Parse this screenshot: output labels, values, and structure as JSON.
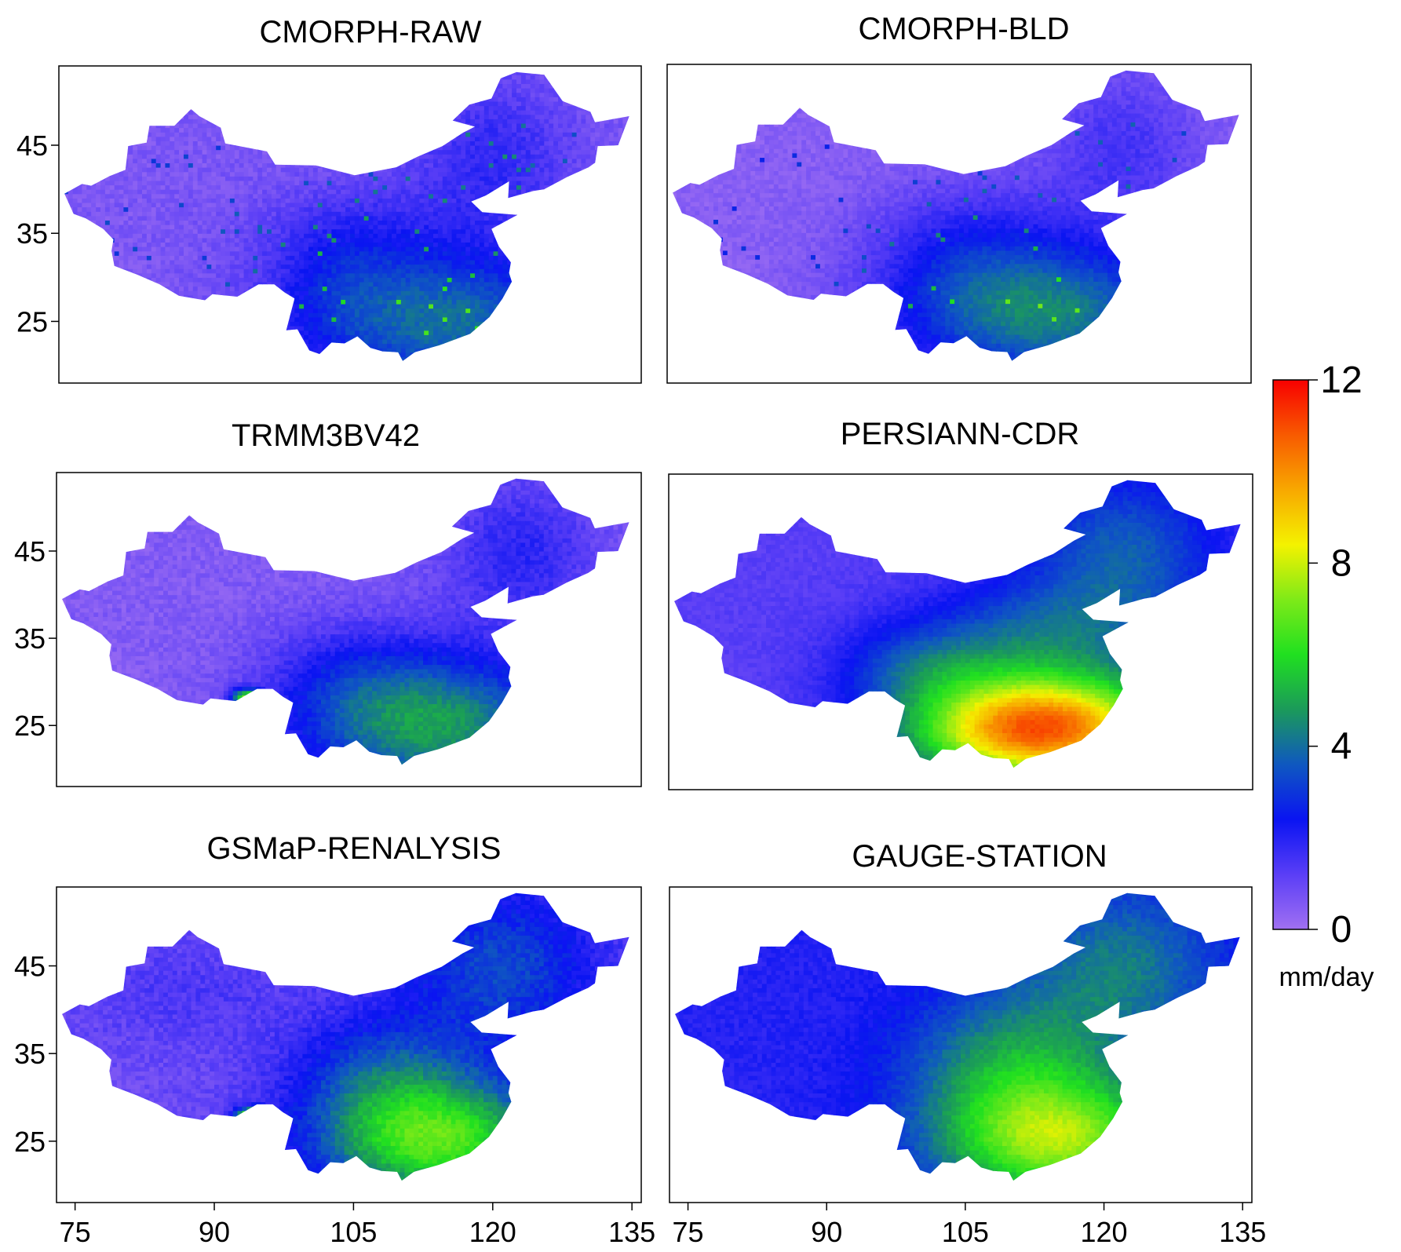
{
  "panels": [
    {
      "title": "CMORPH-RAW",
      "dataset": "cmorph_raw"
    },
    {
      "title": "CMORPH-BLD",
      "dataset": "cmorph_bld"
    },
    {
      "title": "TRMM3BV42",
      "dataset": "trmm"
    },
    {
      "title": "PERSIANN-CDR",
      "dataset": "persiann"
    },
    {
      "title": "GSMaP-RENALYSIS",
      "dataset": "gsmap"
    },
    {
      "title": "GAUGE-STATION",
      "dataset": "gauge"
    }
  ],
  "axes": {
    "lon_ticks": [
      75,
      90,
      105,
      120,
      135
    ],
    "lat_ticks": [
      45,
      35,
      25
    ],
    "lon_range": [
      73,
      136
    ],
    "lat_range": [
      18,
      54
    ]
  },
  "colorbar": {
    "ticks": [
      0,
      4,
      8,
      12
    ],
    "range": [
      0,
      12
    ],
    "unit": "mm/day",
    "colors": [
      "#a070f2",
      "#5a3ef6",
      "#0a14f2",
      "#0f58c0",
      "#1b9a5a",
      "#20e020",
      "#7eea18",
      "#f4f200",
      "#f8a800",
      "#f85a00",
      "#f80000"
    ]
  }
}
